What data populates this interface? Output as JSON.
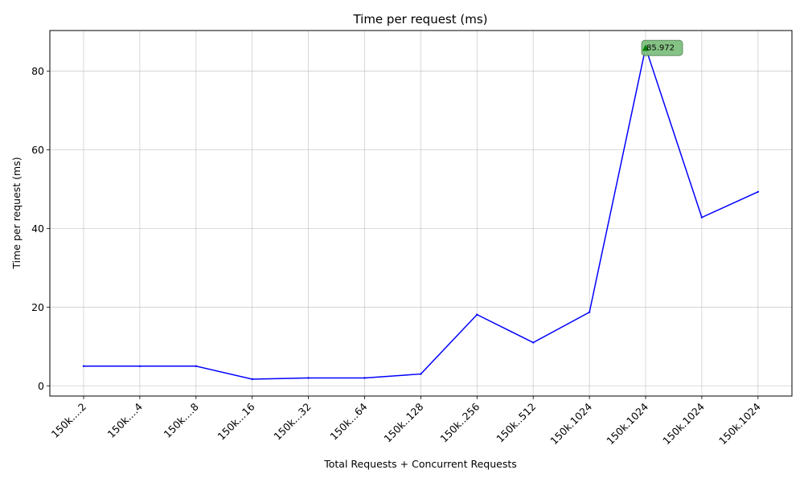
{
  "chart_data": {
    "type": "line",
    "title": "Time per request (ms)",
    "xlabel": "Total Requests + Concurrent Requests",
    "ylabel": "Time per request (ms)",
    "categories": [
      "150k....2",
      "150k....4",
      "150k....8",
      "150k...16",
      "150k...32",
      "150k...64",
      "150k..128",
      "150k..256",
      "150k..512",
      "150k.1024",
      "150k.1024",
      "150k.1024",
      "150k.1024"
    ],
    "series": [
      {
        "color": "#0000ff",
        "values": [
          5.0,
          5.0,
          5.0,
          1.7,
          2.0,
          2.0,
          3.0,
          18.1,
          11.0,
          18.7,
          85.972,
          42.8,
          49.3
        ]
      }
    ],
    "yticks": [
      0,
      20,
      40,
      60,
      80
    ],
    "ylim": [
      -2.6,
      90.3
    ],
    "grid": true,
    "annotation": {
      "index": 10,
      "text": "85.972",
      "color": "#008000",
      "box_color": "#7fbf7f"
    }
  }
}
